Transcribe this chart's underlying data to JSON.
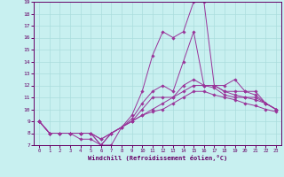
{
  "xlabel": "Windchill (Refroidissement éolien,°C)",
  "x_values": [
    0,
    1,
    2,
    3,
    4,
    5,
    6,
    7,
    8,
    9,
    10,
    11,
    12,
    13,
    14,
    15,
    16,
    17,
    18,
    19,
    20,
    21,
    22,
    23
  ],
  "lines": [
    [
      9.0,
      8.0,
      8.0,
      8.0,
      7.5,
      7.5,
      7.0,
      7.0,
      8.5,
      9.5,
      11.5,
      14.5,
      16.5,
      16.0,
      16.5,
      19.0,
      19.0,
      12.0,
      12.0,
      12.5,
      11.5,
      11.5,
      10.5,
      10.0
    ],
    [
      9.0,
      8.0,
      8.0,
      8.0,
      8.0,
      8.0,
      7.5,
      8.0,
      8.5,
      9.2,
      10.5,
      11.5,
      12.0,
      11.5,
      14.0,
      16.5,
      12.0,
      12.0,
      11.5,
      11.5,
      11.5,
      11.2,
      10.5,
      10.0
    ],
    [
      9.0,
      8.0,
      8.0,
      8.0,
      8.0,
      8.0,
      7.5,
      8.0,
      8.5,
      9.0,
      10.0,
      11.0,
      11.0,
      11.0,
      12.0,
      12.5,
      12.0,
      12.0,
      11.5,
      11.2,
      11.0,
      11.0,
      10.5,
      10.0
    ],
    [
      9.0,
      8.0,
      8.0,
      8.0,
      8.0,
      8.0,
      7.0,
      8.0,
      8.5,
      9.0,
      9.5,
      10.0,
      10.5,
      11.0,
      11.5,
      12.0,
      12.0,
      11.8,
      11.2,
      11.0,
      11.0,
      10.8,
      10.5,
      10.0
    ],
    [
      9.0,
      8.0,
      8.0,
      8.0,
      8.0,
      8.0,
      7.0,
      8.0,
      8.5,
      9.0,
      9.5,
      9.8,
      10.0,
      10.5,
      11.0,
      11.5,
      11.5,
      11.2,
      11.0,
      10.8,
      10.5,
      10.3,
      10.0,
      9.8
    ]
  ],
  "line_color": "#993399",
  "bg_color": "#c8f0f0",
  "grid_color": "#aadddd",
  "spine_color": "#660066",
  "tick_color": "#660066",
  "ylim": [
    7,
    19
  ],
  "xlim_min": -0.5,
  "xlim_max": 23.5,
  "yticks": [
    7,
    8,
    9,
    10,
    11,
    12,
    13,
    14,
    15,
    16,
    17,
    18,
    19
  ],
  "xticks": [
    0,
    1,
    2,
    3,
    4,
    5,
    6,
    7,
    8,
    9,
    10,
    11,
    12,
    13,
    14,
    15,
    16,
    17,
    18,
    19,
    20,
    21,
    22,
    23
  ]
}
